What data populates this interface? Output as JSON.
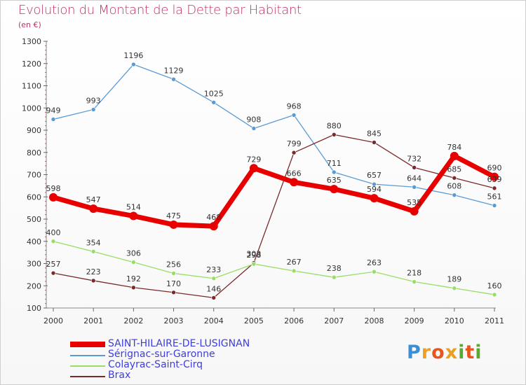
{
  "title": "Evolution du Montant de la Dette par Habitant",
  "unit": "(en €)",
  "logo": {
    "text": "Proxiti",
    "letters": [
      {
        "ch": "P",
        "color": "#3a8fd6"
      },
      {
        "ch": "r",
        "color": "#f0a020"
      },
      {
        "ch": "o",
        "color": "#e8561d"
      },
      {
        "ch": "x",
        "color": "#e8a020"
      },
      {
        "ch": "i",
        "color": "#5aaa32"
      },
      {
        "ch": "t",
        "color": "#e8561d"
      },
      {
        "ch": "i",
        "color": "#5aaa32"
      }
    ]
  },
  "chart_data": {
    "type": "line",
    "title": "Evolution du Montant de la Dette par Habitant",
    "ylabel": "(en €)",
    "xlabel": "",
    "x": [
      "2000",
      "2001",
      "2002",
      "2003",
      "2004",
      "2005",
      "2006",
      "2007",
      "2008",
      "2009",
      "2010",
      "2011"
    ],
    "ylim": [
      100,
      1300
    ],
    "yticks": [
      100,
      200,
      300,
      400,
      500,
      600,
      700,
      800,
      900,
      1000,
      1100,
      1200,
      1300
    ],
    "grid": false,
    "legend_position": "bottom-left",
    "series": [
      {
        "name": "SAINT-HILAIRE-DE-LUSIGNAN",
        "color": "#e80000",
        "values": [
          598,
          547,
          514,
          475,
          468,
          729,
          666,
          635,
          594,
          535,
          784,
          690
        ]
      },
      {
        "name": "Sérignac-sur-Garonne",
        "color": "#5b9bd5",
        "values": [
          949,
          993,
          1196,
          1129,
          1025,
          908,
          968,
          711,
          657,
          644,
          608,
          561
        ]
      },
      {
        "name": "Colayrac-Saint-Cirq",
        "color": "#99dd66",
        "values": [
          400,
          354,
          306,
          256,
          233,
          298,
          267,
          238,
          263,
          218,
          189,
          160
        ]
      },
      {
        "name": "Brax",
        "color": "#7a2a2a",
        "values": [
          257,
          223,
          192,
          170,
          146,
          303,
          799,
          880,
          845,
          732,
          685,
          639
        ]
      }
    ]
  }
}
